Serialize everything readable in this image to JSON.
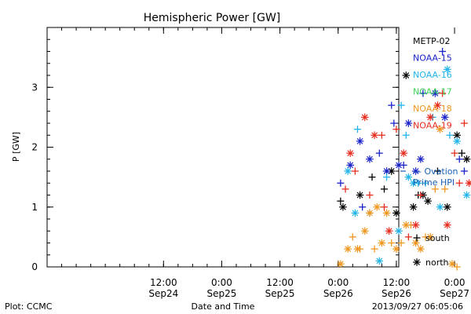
{
  "chart_data": {
    "type": "scatter",
    "title": "Hemispheric Power [GW]",
    "xlabel": "Date and Time",
    "ylabel": "P [GW]",
    "ylim": [
      0,
      4
    ],
    "xlim_hours": [
      -60,
      12.5
    ],
    "x_axis_note": "x values are hours relative to Sep26 00:00",
    "y_ticks": [
      0,
      1,
      2,
      3
    ],
    "x_ticks": [
      {
        "h": -36,
        "line1": "12:00",
        "line2": "Sep24"
      },
      {
        "h": -24,
        "line1": "0:00",
        "line2": "Sep25"
      },
      {
        "h": -12,
        "line1": "12:00",
        "line2": "Sep25"
      },
      {
        "h": 0,
        "line1": "0:00",
        "line2": "Sep26"
      },
      {
        "h": 12,
        "line1": "12:00",
        "line2": "Sep26"
      },
      {
        "h": 24,
        "line1": "0:00",
        "line2": "Sep27"
      }
    ],
    "grid": false,
    "legend_position": "right",
    "series": [
      {
        "name": "METP-02",
        "color": "#000000",
        "points": [
          {
            "x": 0.5,
            "y": 1.1,
            "m": "+"
          },
          {
            "x": 1.0,
            "y": 1.0,
            "m": "*"
          },
          {
            "x": 4.5,
            "y": 1.2,
            "m": "*"
          },
          {
            "x": 7.0,
            "y": 1.5,
            "m": "+"
          },
          {
            "x": 9.5,
            "y": 1.3,
            "m": "+"
          },
          {
            "x": 11.0,
            "y": 1.6,
            "m": "*"
          },
          {
            "x": 12.0,
            "y": 0.9,
            "m": "*"
          },
          {
            "x": 14.0,
            "y": 3.2,
            "m": "*"
          },
          {
            "x": 15.5,
            "y": 1.0,
            "m": "*"
          },
          {
            "x": 16.5,
            "y": 1.2,
            "m": "+"
          },
          {
            "x": 17.5,
            "y": 1.2,
            "m": "*"
          },
          {
            "x": 18.5,
            "y": 1.1,
            "m": "*"
          },
          {
            "x": 20.5,
            "y": 1.6,
            "m": "+"
          },
          {
            "x": 22.5,
            "y": 1.0,
            "m": "*"
          },
          {
            "x": 24.5,
            "y": 2.2,
            "m": "*"
          },
          {
            "x": 25.5,
            "y": 1.9,
            "m": "+"
          },
          {
            "x": 26.5,
            "y": 1.8,
            "m": "*"
          }
        ]
      },
      {
        "name": "NOAA-15",
        "color": "#1a23c8",
        "points": [
          {
            "x": 0.5,
            "y": 1.4,
            "m": "+"
          },
          {
            "x": 2.5,
            "y": 1.7,
            "m": "*"
          },
          {
            "x": 4.5,
            "y": 2.1,
            "m": "*"
          },
          {
            "x": 5.0,
            "y": 1.0,
            "m": "+"
          },
          {
            "x": 6.5,
            "y": 1.8,
            "m": "*"
          },
          {
            "x": 8.5,
            "y": 1.9,
            "m": "+"
          },
          {
            "x": 10.0,
            "y": 1.6,
            "m": "*"
          },
          {
            "x": 11.5,
            "y": 2.4,
            "m": "+"
          },
          {
            "x": 12.5,
            "y": 1.7,
            "m": "*"
          },
          {
            "x": 13.5,
            "y": 1.7,
            "m": "+"
          },
          {
            "x": 14.5,
            "y": 2.4,
            "m": "*"
          },
          {
            "x": 16.0,
            "y": 1.6,
            "m": "*"
          },
          {
            "x": 17.0,
            "y": 1.8,
            "m": "*"
          },
          {
            "x": 17.5,
            "y": 2.9,
            "m": "+"
          },
          {
            "x": 20.0,
            "y": 2.9,
            "m": "*"
          },
          {
            "x": 21.5,
            "y": 3.6,
            "m": "+"
          },
          {
            "x": 22.0,
            "y": 2.5,
            "m": "*"
          },
          {
            "x": 25.0,
            "y": 1.8,
            "m": "+"
          },
          {
            "x": 26.0,
            "y": 1.6,
            "m": "+"
          },
          {
            "x": 11.0,
            "y": 2.7,
            "m": "+"
          }
        ]
      },
      {
        "name": "NOAA-16",
        "color": "#22b4ea",
        "points": [
          {
            "x": 2.0,
            "y": 1.6,
            "m": "*"
          },
          {
            "x": 3.5,
            "y": 0.9,
            "m": "*"
          },
          {
            "x": 4.0,
            "y": 2.3,
            "m": "+"
          },
          {
            "x": 6.5,
            "y": 0.9,
            "m": "+"
          },
          {
            "x": 8.5,
            "y": 0.1,
            "m": "*"
          },
          {
            "x": 10.0,
            "y": 1.5,
            "m": "+"
          },
          {
            "x": 12.5,
            "y": 0.6,
            "m": "*"
          },
          {
            "x": 13.0,
            "y": 2.7,
            "m": "+"
          },
          {
            "x": 14.0,
            "y": 2.2,
            "m": "+"
          },
          {
            "x": 14.5,
            "y": 1.5,
            "m": "*"
          },
          {
            "x": 15.5,
            "y": 1.4,
            "m": "*"
          },
          {
            "x": 16.5,
            "y": 1.4,
            "m": "+"
          },
          {
            "x": 18.0,
            "y": 1.4,
            "m": "+"
          },
          {
            "x": 19.5,
            "y": 2.5,
            "m": "+"
          },
          {
            "x": 21.0,
            "y": 1.0,
            "m": "*"
          },
          {
            "x": 22.5,
            "y": 3.3,
            "m": "*"
          },
          {
            "x": 23.0,
            "y": 2.2,
            "m": "+"
          },
          {
            "x": 24.5,
            "y": 2.1,
            "m": "*"
          },
          {
            "x": 26.5,
            "y": 1.2,
            "m": "*"
          }
        ]
      },
      {
        "name": "NOAA-17",
        "color": "#3cd25a",
        "points": []
      },
      {
        "name": "NOAA-18",
        "color": "#f0961e",
        "points": [
          {
            "x": 0.5,
            "y": 0.05,
            "m": "*"
          },
          {
            "x": 2.0,
            "y": 0.3,
            "m": "*"
          },
          {
            "x": 3.0,
            "y": 0.5,
            "m": "+"
          },
          {
            "x": 4.0,
            "y": 0.3,
            "m": "*"
          },
          {
            "x": 4.5,
            "y": 0.3,
            "m": "+"
          },
          {
            "x": 5.5,
            "y": 0.6,
            "m": "*"
          },
          {
            "x": 6.5,
            "y": 0.9,
            "m": "*"
          },
          {
            "x": 7.5,
            "y": 0.3,
            "m": "+"
          },
          {
            "x": 8.0,
            "y": 1.0,
            "m": "*"
          },
          {
            "x": 9.0,
            "y": 0.4,
            "m": "*"
          },
          {
            "x": 10.0,
            "y": 0.9,
            "m": "*"
          },
          {
            "x": 11.0,
            "y": 0.4,
            "m": "+"
          },
          {
            "x": 12.0,
            "y": 0.3,
            "m": "*"
          },
          {
            "x": 13.0,
            "y": 0.4,
            "m": "+"
          },
          {
            "x": 14.0,
            "y": 0.7,
            "m": "*"
          },
          {
            "x": 15.0,
            "y": 0.7,
            "m": "+"
          },
          {
            "x": 16.0,
            "y": 0.4,
            "m": "*"
          },
          {
            "x": 17.0,
            "y": 0.3,
            "m": "*"
          },
          {
            "x": 18.0,
            "y": 0.5,
            "m": "+"
          },
          {
            "x": 19.0,
            "y": 0.5,
            "m": "*"
          },
          {
            "x": 20.0,
            "y": 1.3,
            "m": "+"
          },
          {
            "x": 21.0,
            "y": 2.3,
            "m": "*"
          },
          {
            "x": 22.0,
            "y": 1.3,
            "m": "+"
          },
          {
            "x": 23.5,
            "y": 0.05,
            "m": "*"
          },
          {
            "x": 24.5,
            "y": 0.0,
            "m": "+"
          }
        ]
      },
      {
        "name": "NOAA-19",
        "color": "#e62d1e",
        "points": [
          {
            "x": 1.5,
            "y": 1.3,
            "m": "+"
          },
          {
            "x": 2.5,
            "y": 1.9,
            "m": "*"
          },
          {
            "x": 3.5,
            "y": 1.6,
            "m": "+"
          },
          {
            "x": 5.5,
            "y": 2.5,
            "m": "*"
          },
          {
            "x": 6.5,
            "y": 1.2,
            "m": "+"
          },
          {
            "x": 7.5,
            "y": 2.2,
            "m": "*"
          },
          {
            "x": 9.0,
            "y": 2.2,
            "m": "+"
          },
          {
            "x": 9.5,
            "y": 1.0,
            "m": "+"
          },
          {
            "x": 10.5,
            "y": 0.6,
            "m": "*"
          },
          {
            "x": 12.0,
            "y": 2.3,
            "m": "+"
          },
          {
            "x": 13.5,
            "y": 1.9,
            "m": "*"
          },
          {
            "x": 14.5,
            "y": 0.5,
            "m": "+"
          },
          {
            "x": 16.0,
            "y": 0.7,
            "m": "*"
          },
          {
            "x": 17.0,
            "y": 1.2,
            "m": "+"
          },
          {
            "x": 19.0,
            "y": 2.5,
            "m": "*"
          },
          {
            "x": 20.5,
            "y": 2.7,
            "m": "*"
          },
          {
            "x": 21.5,
            "y": 2.9,
            "m": "+"
          },
          {
            "x": 22.5,
            "y": 0.7,
            "m": "*"
          },
          {
            "x": 24.0,
            "y": 1.9,
            "m": "+"
          },
          {
            "x": 25.0,
            "y": 1.4,
            "m": "+"
          },
          {
            "x": 26.0,
            "y": 2.4,
            "m": "+"
          },
          {
            "x": 27.0,
            "y": 1.4,
            "m": "*"
          }
        ]
      }
    ],
    "reference_markers": [
      {
        "label_line1": "— Ovation",
        "label_line2": "Prime HPI",
        "y": 1.6,
        "color": "#1a5fb4"
      }
    ],
    "symbol_legend": [
      {
        "symbol": "+",
        "label": "south"
      },
      {
        "symbol": "*",
        "label": "north"
      }
    ],
    "footer_left": "Plot: CCMC",
    "footer_right": "2013/09/27 06:05:06"
  }
}
